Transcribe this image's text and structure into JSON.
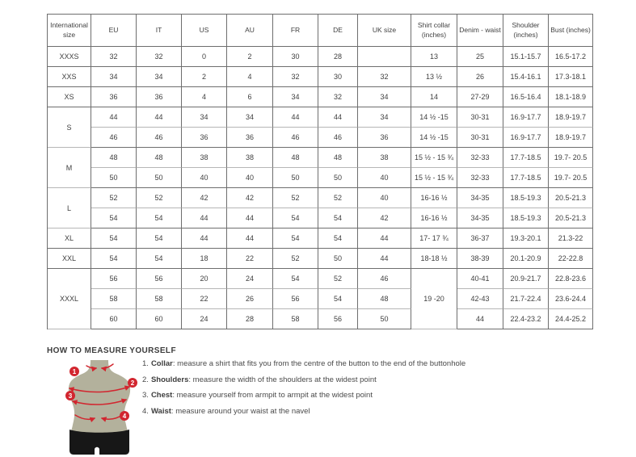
{
  "colors": {
    "accent_red": "#d2262f",
    "torso_olive": "#b3b19c",
    "shorts_black": "#171717",
    "border_dark": "#6e6e6e",
    "border_light": "#b6b6b6",
    "text": "#3f3f3f"
  },
  "size_table": {
    "headers": [
      "International size",
      "EU",
      "IT",
      "US",
      "AU",
      "FR",
      "DE",
      "UK size",
      "Shirt collar (inches)",
      "Denim - waist",
      "Shoulder (inches)",
      "Bust (inches)"
    ],
    "rows": [
      {
        "cells": [
          {
            "t": "XXXS"
          },
          {
            "t": "32"
          },
          {
            "t": "32"
          },
          {
            "t": "0"
          },
          {
            "t": "2"
          },
          {
            "t": "30"
          },
          {
            "t": "28"
          },
          {
            "t": ""
          },
          {
            "t": "13"
          },
          {
            "t": "25"
          },
          {
            "t": "15.1-15.7"
          },
          {
            "t": "16.5-17.2"
          }
        ]
      },
      {
        "cells": [
          {
            "t": "XXS"
          },
          {
            "t": "34"
          },
          {
            "t": "34"
          },
          {
            "t": "2"
          },
          {
            "t": "4"
          },
          {
            "t": "32"
          },
          {
            "t": "30"
          },
          {
            "t": "32"
          },
          {
            "t": "13 ½"
          },
          {
            "t": "26"
          },
          {
            "t": "15.4-16.1"
          },
          {
            "t": "17.3-18.1"
          }
        ]
      },
      {
        "cells": [
          {
            "t": "XS"
          },
          {
            "t": "36"
          },
          {
            "t": "36"
          },
          {
            "t": "4"
          },
          {
            "t": "6"
          },
          {
            "t": "34"
          },
          {
            "t": "32"
          },
          {
            "t": "34"
          },
          {
            "t": "14"
          },
          {
            "t": "27-29"
          },
          {
            "t": "16.5-16.4"
          },
          {
            "t": "18.1-18.9"
          }
        ]
      },
      {
        "light_bottom": true,
        "cells": [
          {
            "t": "S",
            "rs": 2
          },
          {
            "t": "44"
          },
          {
            "t": "44"
          },
          {
            "t": "34"
          },
          {
            "t": "34"
          },
          {
            "t": "44"
          },
          {
            "t": "44"
          },
          {
            "t": "34"
          },
          {
            "t": "14 ½ -15"
          },
          {
            "t": "30-31"
          },
          {
            "t": "16.9-17.7"
          },
          {
            "t": "18.9-19.7"
          }
        ]
      },
      {
        "cells": [
          {
            "t": "46"
          },
          {
            "t": "46"
          },
          {
            "t": "36"
          },
          {
            "t": "36"
          },
          {
            "t": "46"
          },
          {
            "t": "46"
          },
          {
            "t": "36"
          },
          {
            "t": "14 ½ -15"
          },
          {
            "t": "30-31"
          },
          {
            "t": "16.9-17.7"
          },
          {
            "t": "18.9-19.7"
          }
        ]
      },
      {
        "light_bottom": true,
        "cells": [
          {
            "t": "M",
            "rs": 2
          },
          {
            "t": "48"
          },
          {
            "t": "48"
          },
          {
            "t": "38"
          },
          {
            "t": "38"
          },
          {
            "t": "48"
          },
          {
            "t": "48"
          },
          {
            "t": "38"
          },
          {
            "t": "15 ½ - 15 ¾"
          },
          {
            "t": "32-33"
          },
          {
            "t": "17.7-18.5"
          },
          {
            "t": "19.7- 20.5"
          }
        ]
      },
      {
        "cells": [
          {
            "t": "50"
          },
          {
            "t": "50"
          },
          {
            "t": "40"
          },
          {
            "t": "40"
          },
          {
            "t": "50"
          },
          {
            "t": "50"
          },
          {
            "t": "40"
          },
          {
            "t": "15 ½ - 15 ¾"
          },
          {
            "t": "32-33"
          },
          {
            "t": "17.7-18.5"
          },
          {
            "t": "19.7- 20.5"
          }
        ]
      },
      {
        "light_bottom": true,
        "cells": [
          {
            "t": "L",
            "rs": 2
          },
          {
            "t": "52"
          },
          {
            "t": "52"
          },
          {
            "t": "42"
          },
          {
            "t": "42"
          },
          {
            "t": "52"
          },
          {
            "t": "52"
          },
          {
            "t": "40"
          },
          {
            "t": "16-16 ½"
          },
          {
            "t": "34-35"
          },
          {
            "t": "18.5-19.3"
          },
          {
            "t": "20.5-21.3"
          }
        ]
      },
      {
        "cells": [
          {
            "t": "54"
          },
          {
            "t": "54"
          },
          {
            "t": "44"
          },
          {
            "t": "44"
          },
          {
            "t": "54"
          },
          {
            "t": "54"
          },
          {
            "t": "42"
          },
          {
            "t": "16-16 ½"
          },
          {
            "t": "34-35"
          },
          {
            "t": "18.5-19.3"
          },
          {
            "t": "20.5-21.3"
          }
        ]
      },
      {
        "cells": [
          {
            "t": "XL"
          },
          {
            "t": "54"
          },
          {
            "t": "54"
          },
          {
            "t": "44"
          },
          {
            "t": "44"
          },
          {
            "t": "54"
          },
          {
            "t": "54"
          },
          {
            "t": "44"
          },
          {
            "t": "17- 17 ¾"
          },
          {
            "t": "36-37"
          },
          {
            "t": "19.3-20.1"
          },
          {
            "t": "21.3-22"
          }
        ]
      },
      {
        "cells": [
          {
            "t": "XXL"
          },
          {
            "t": "54"
          },
          {
            "t": "54"
          },
          {
            "t": "18"
          },
          {
            "t": "22"
          },
          {
            "t": "52"
          },
          {
            "t": "50"
          },
          {
            "t": "44"
          },
          {
            "t": "18-18 ½"
          },
          {
            "t": "38-39"
          },
          {
            "t": "20.1-20.9"
          },
          {
            "t": "22-22.8"
          }
        ]
      },
      {
        "light_bottom": true,
        "cells": [
          {
            "t": "XXXL",
            "rs": 3
          },
          {
            "t": "56"
          },
          {
            "t": "56"
          },
          {
            "t": "20"
          },
          {
            "t": "24"
          },
          {
            "t": "54"
          },
          {
            "t": "52"
          },
          {
            "t": "46"
          },
          {
            "t": "19 -20",
            "rs": 3
          },
          {
            "t": "40-41"
          },
          {
            "t": "20.9-21.7"
          },
          {
            "t": "22.8-23.6"
          }
        ]
      },
      {
        "light_bottom": true,
        "cells": [
          {
            "t": "58"
          },
          {
            "t": "58"
          },
          {
            "t": "22"
          },
          {
            "t": "26"
          },
          {
            "t": "56"
          },
          {
            "t": "54"
          },
          {
            "t": "48"
          },
          {
            "t": "42-43"
          },
          {
            "t": "21.7-22.4"
          },
          {
            "t": "23.6-24.4"
          }
        ]
      },
      {
        "cells": [
          {
            "t": "60"
          },
          {
            "t": "60"
          },
          {
            "t": "24"
          },
          {
            "t": "28"
          },
          {
            "t": "58"
          },
          {
            "t": "56"
          },
          {
            "t": "50"
          },
          {
            "t": "44"
          },
          {
            "t": "22.4-23.2"
          },
          {
            "t": "24.4-25.2"
          }
        ]
      }
    ]
  },
  "measure": {
    "title": "HOW TO MEASURE YOURSELF",
    "instructions": [
      {
        "num": "1.",
        "term": "Collar",
        "rest": ": measure a shirt that fits you from the centre of the button to the end of the buttonhole"
      },
      {
        "num": "2.",
        "term": "Shoulders",
        "rest": ": measure the width of the shoulders at the widest point"
      },
      {
        "num": "3.",
        "term": "Chest",
        "rest": ": measure yourself from armpit to armpit at the widest point"
      },
      {
        "num": "4.",
        "term": "Waist",
        "rest": ": measure around your waist at the navel"
      }
    ],
    "figure": {
      "badges": [
        "1",
        "2",
        "3",
        "4"
      ]
    }
  }
}
